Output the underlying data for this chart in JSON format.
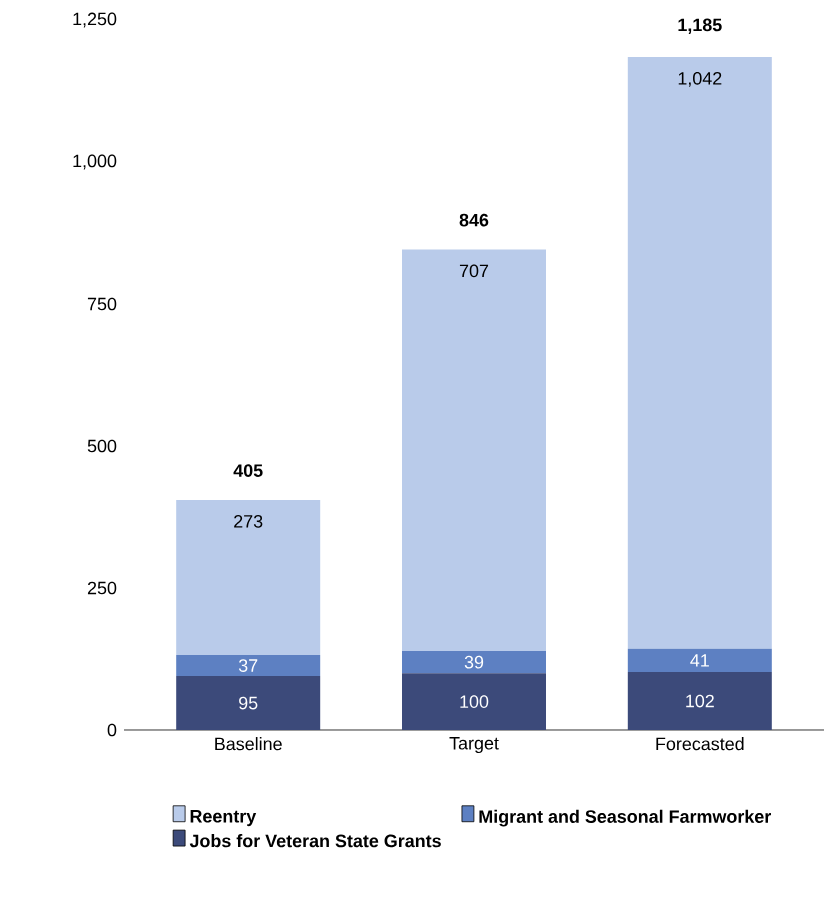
{
  "chart_data": {
    "type": "bar",
    "stacked": true,
    "categories": [
      "Baseline",
      "Target",
      "Forecasted"
    ],
    "series": [
      {
        "name": "Jobs for Veteran State Grants",
        "color": "#3c4a7a",
        "values": [
          95,
          100,
          102
        ],
        "value_labels": [
          "95",
          "100",
          "102"
        ]
      },
      {
        "name": "Migrant and Seasonal Farmworker",
        "color": "#5d80c2",
        "values": [
          37,
          39,
          41
        ],
        "value_labels": [
          "37",
          "39",
          "41"
        ]
      },
      {
        "name": "Reentry",
        "color": "#b9cbea",
        "values": [
          273,
          707,
          1042
        ],
        "value_labels": [
          "273",
          "707",
          "1,042"
        ]
      }
    ],
    "totals": [
      "405",
      "846",
      "1,185"
    ],
    "ylim": [
      0,
      1250
    ],
    "yticks": [
      0,
      250,
      500,
      750,
      {
        "value": 1000,
        "label": "1,000"
      },
      {
        "value": 1250,
        "label": "1,250"
      }
    ],
    "grid": false,
    "legend": "bottom"
  }
}
